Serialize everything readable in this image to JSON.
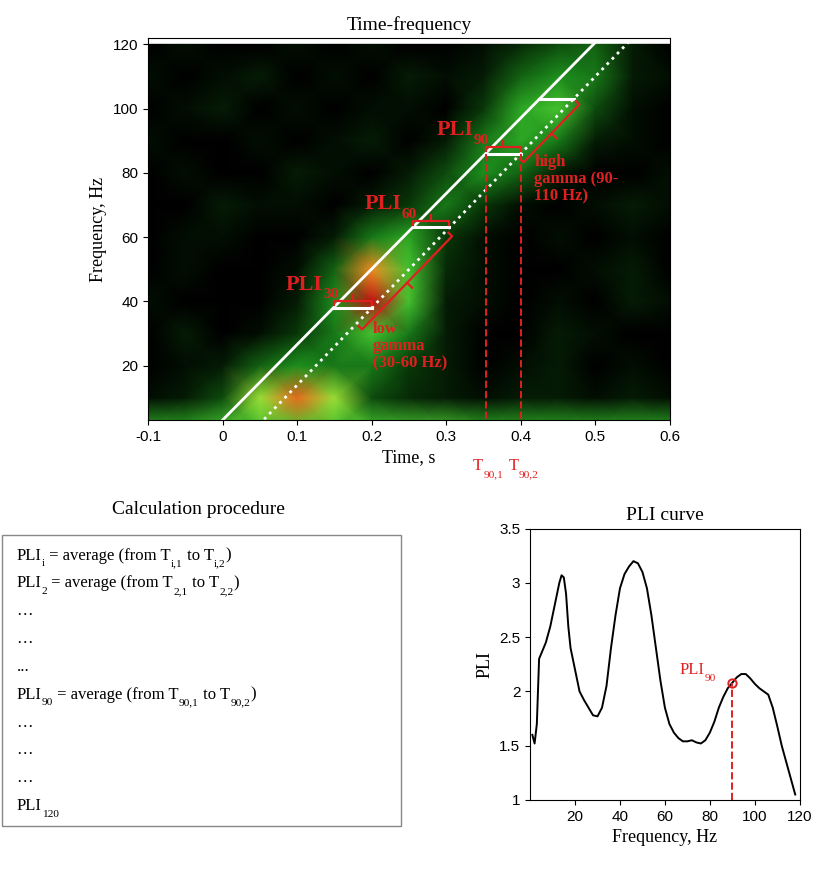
{
  "chart_data": [
    {
      "type": "heatmap",
      "title": "Time-frequency",
      "x_label": "Time, s",
      "y_label": "Frequency, Hz",
      "xlim": [
        -0.1,
        0.6
      ],
      "ylim": [
        3,
        122
      ],
      "xticks": [
        -0.1,
        0,
        0.1,
        0.2,
        0.3,
        0.4,
        0.5,
        0.6
      ],
      "yticks": [
        20,
        40,
        60,
        80,
        100,
        120
      ],
      "cells": {
        "x": [
          -0.1,
          -0.05,
          0,
          0.05,
          0.1,
          0.15,
          0.2,
          0.25,
          0.3,
          0.35,
          0.4,
          0.45,
          0.5,
          0.55,
          0.6
        ],
        "y": [
          0,
          10,
          20,
          30,
          40,
          50,
          60,
          70,
          80,
          90,
          100,
          110,
          120
        ],
        "values": [
          [
            0.55,
            0.55,
            0.6,
            0.6,
            0.6,
            0.6,
            0.6,
            0.6,
            0.6,
            0.55,
            0.55,
            0.55,
            0.55,
            0.55,
            0.55
          ],
          [
            0.15,
            0.2,
            0.35,
            0.7,
            0.88,
            0.7,
            0.35,
            0.25,
            0.2,
            0.15,
            0.2,
            0.2,
            0.15,
            0.2,
            0.15
          ],
          [
            0.1,
            0.15,
            0.2,
            0.4,
            0.5,
            0.45,
            0.45,
            0.3,
            0.2,
            0.1,
            0.15,
            0.2,
            0.1,
            0.15,
            0.1
          ],
          [
            0.1,
            0.2,
            0.1,
            0.15,
            0.3,
            0.45,
            0.6,
            0.45,
            0.2,
            0.1,
            0.1,
            0.2,
            0.15,
            0.1,
            0.1
          ],
          [
            0.15,
            0.1,
            0.1,
            0.1,
            0.2,
            0.5,
            0.95,
            0.6,
            0.2,
            0.15,
            0.1,
            0.15,
            0.1,
            0.2,
            0.15
          ],
          [
            0.1,
            0.15,
            0.1,
            0.1,
            0.15,
            0.4,
            0.85,
            0.6,
            0.25,
            0.15,
            0.1,
            0.1,
            0.15,
            0.2,
            0.1
          ],
          [
            0.1,
            0.15,
            0.15,
            0.1,
            0.1,
            0.2,
            0.45,
            0.55,
            0.3,
            0.15,
            0.1,
            0.15,
            0.1,
            0.15,
            0.1
          ],
          [
            0.1,
            0.1,
            0.2,
            0.15,
            0.15,
            0.1,
            0.2,
            0.3,
            0.45,
            0.3,
            0.15,
            0.1,
            0.15,
            0.2,
            0.15
          ],
          [
            0.1,
            0.15,
            0.1,
            0.1,
            0.2,
            0.15,
            0.1,
            0.2,
            0.35,
            0.5,
            0.4,
            0.2,
            0.1,
            0.1,
            0.15
          ],
          [
            0.15,
            0.1,
            0.1,
            0.15,
            0.1,
            0.15,
            0.2,
            0.1,
            0.2,
            0.45,
            0.55,
            0.45,
            0.2,
            0.15,
            0.1
          ],
          [
            0.1,
            0.15,
            0.2,
            0.1,
            0.15,
            0.1,
            0.15,
            0.15,
            0.1,
            0.3,
            0.55,
            0.6,
            0.35,
            0.15,
            0.1
          ],
          [
            0.15,
            0.1,
            0.15,
            0.2,
            0.1,
            0.15,
            0.1,
            0.2,
            0.15,
            0.2,
            0.4,
            0.5,
            0.45,
            0.2,
            0.15
          ],
          [
            0.1,
            0.15,
            0.1,
            0.1,
            0.15,
            0.1,
            0.15,
            0.1,
            0.1,
            0.15,
            0.25,
            0.35,
            0.4,
            0.2,
            0.1
          ]
        ]
      },
      "lines": [
        {
          "line_style": "solid",
          "color": "#ffffff",
          "x": [
            -0.013,
            0.506
          ],
          "y": [
            0,
            122
          ]
        },
        {
          "line_style": "dotted",
          "color": "#ffffff",
          "x": [
            0.042,
            0.55
          ],
          "y": [
            0,
            122
          ]
        }
      ],
      "windows": [
        {
          "frequency": 38,
          "t1": 0.149,
          "t2": 0.2,
          "label": [
            "PLI",
            "30"
          ]
        },
        {
          "frequency": 63,
          "t1": 0.255,
          "t2": 0.304,
          "label": [
            "PLI",
            "60"
          ]
        },
        {
          "frequency": 86,
          "t1": 0.353,
          "t2": 0.4,
          "label": [
            "PLI",
            "90"
          ]
        },
        {
          "frequency": 103,
          "t1": 0.425,
          "t2": 0.472,
          "label": null
        }
      ],
      "bands": [
        {
          "f1": 33,
          "f2": 62,
          "label": "low\ngamma\n(30-60 Hz)"
        },
        {
          "f1": 85,
          "f2": 103,
          "label": "high\ngamma (90-\n110 Hz)"
        }
      ],
      "time_markers": [
        {
          "x": 0.353,
          "from_frequency": 86,
          "label": [
            "T",
            "90,1"
          ]
        },
        {
          "x": 0.4,
          "from_frequency": 86,
          "label": [
            "T",
            "90,2"
          ]
        }
      ]
    },
    {
      "type": "line",
      "title": "PLI curve",
      "x_label": "Frequency, Hz",
      "y_label": "PLI",
      "xlim": [
        0,
        120
      ],
      "ylim": [
        1,
        3.5
      ],
      "xticks": [
        20,
        40,
        60,
        80,
        100,
        120
      ],
      "yticks": [
        1,
        1.5,
        2,
        2.5,
        3,
        3.5
      ],
      "color": "#000000",
      "x": [
        1,
        2,
        3,
        4,
        5,
        7,
        9,
        11,
        13,
        14,
        15,
        16,
        17,
        18,
        20,
        22,
        24,
        26,
        28,
        30,
        32,
        34,
        36,
        38,
        40,
        42,
        44,
        46,
        48,
        50,
        52,
        54,
        56,
        58,
        60,
        62,
        64,
        66,
        68,
        70,
        72,
        74,
        76,
        78,
        80,
        82,
        84,
        86,
        88,
        90,
        92,
        94,
        96,
        98,
        100,
        102,
        104,
        106,
        108,
        110,
        112,
        114,
        116,
        118
      ],
      "values": [
        1.6,
        1.52,
        1.7,
        2.3,
        2.35,
        2.45,
        2.6,
        2.8,
        3.0,
        3.07,
        3.05,
        2.9,
        2.6,
        2.4,
        2.2,
        2.0,
        1.92,
        1.85,
        1.78,
        1.77,
        1.85,
        2.05,
        2.4,
        2.7,
        2.95,
        3.08,
        3.15,
        3.2,
        3.18,
        3.1,
        2.95,
        2.7,
        2.4,
        2.1,
        1.85,
        1.7,
        1.62,
        1.57,
        1.54,
        1.54,
        1.55,
        1.53,
        1.52,
        1.55,
        1.62,
        1.72,
        1.85,
        1.95,
        2.03,
        2.08,
        2.13,
        2.16,
        2.16,
        2.12,
        2.07,
        2.03,
        2.0,
        1.97,
        1.85,
        1.68,
        1.5,
        1.35,
        1.2,
        1.05
      ],
      "highlight": {
        "x": 90,
        "y": 2.08,
        "label": [
          "PLI",
          "90"
        ]
      }
    }
  ],
  "procedure_box": {
    "title": "Calculation procedure",
    "lines": [
      [
        "PLI",
        "i",
        " = average (from T",
        "i,1",
        " to T",
        "i,2",
        ")"
      ],
      [
        "PLI",
        "2",
        " = average (from T",
        "2,1",
        " to T",
        "2,2",
        ")"
      ],
      [
        "…"
      ],
      [
        "…"
      ],
      [
        "..."
      ],
      [
        "PLI",
        "90",
        " = average (from T",
        "90,1",
        " to T",
        "90,2",
        ")"
      ],
      [
        "…"
      ],
      [
        "…"
      ],
      [
        "…"
      ],
      [
        "PLI",
        "120"
      ]
    ]
  }
}
